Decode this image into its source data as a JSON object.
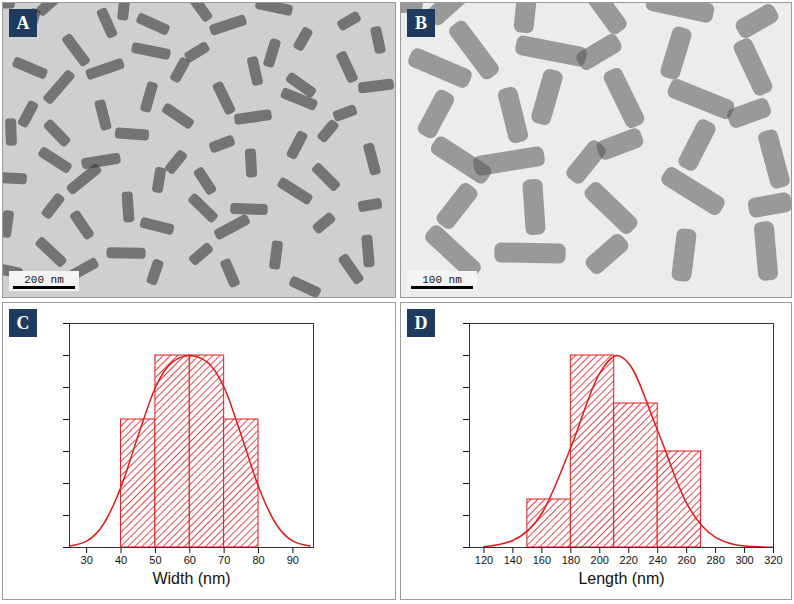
{
  "images": [
    {
      "panel": "A",
      "scale_bar": "200 nm"
    },
    {
      "panel": "B",
      "scale_bar": "100 nm"
    }
  ],
  "chart_data": [
    {
      "panel": "C",
      "type": "histogram",
      "x_label": "Width (nm)",
      "bins": [
        40,
        50,
        60,
        70,
        80
      ],
      "values": [
        8,
        12,
        12,
        8
      ],
      "color": "#e31a1c",
      "xlim": [
        25,
        96
      ],
      "xticks": [
        30,
        40,
        50,
        60,
        70,
        80,
        90
      ],
      "ylim": [
        0,
        14
      ],
      "yticks": [
        0,
        2,
        4,
        6,
        8,
        10,
        12,
        14
      ],
      "tick_labels": "x",
      "series": [
        {
          "type": "line",
          "color": "#e31a1c",
          "x": [
            25,
            30,
            35,
            40,
            45,
            50,
            55,
            60,
            65,
            70,
            75,
            80,
            85,
            90,
            95
          ],
          "values": [
            0.1,
            0.4,
            1.5,
            3.8,
            7,
            10,
            11.6,
            12,
            11.6,
            10,
            7,
            3.8,
            1.5,
            0.4,
            0.1
          ]
        }
      ]
    },
    {
      "panel": "D",
      "type": "histogram",
      "x_label": "Length (nm)",
      "bins": [
        150,
        180,
        210,
        240,
        270
      ],
      "values": [
        3,
        12,
        9,
        6
      ],
      "color": "#e31a1c",
      "xlim": [
        110,
        320
      ],
      "xticks": [
        120,
        140,
        160,
        180,
        200,
        220,
        240,
        260,
        280,
        300,
        320
      ],
      "ylim": [
        0,
        14
      ],
      "yticks": [
        0,
        2,
        4,
        6,
        8,
        10,
        12,
        14
      ],
      "tick_labels": "x",
      "series": [
        {
          "type": "line",
          "color": "#e31a1c",
          "x": [
            120,
            140,
            160,
            180,
            200,
            212,
            220,
            240,
            260,
            280,
            300,
            320
          ],
          "values": [
            0.05,
            0.44,
            2.14,
            6.25,
            10.9,
            12,
            11.5,
            7.3,
            2.76,
            0.63,
            0.09,
            0.01
          ]
        }
      ]
    }
  ]
}
